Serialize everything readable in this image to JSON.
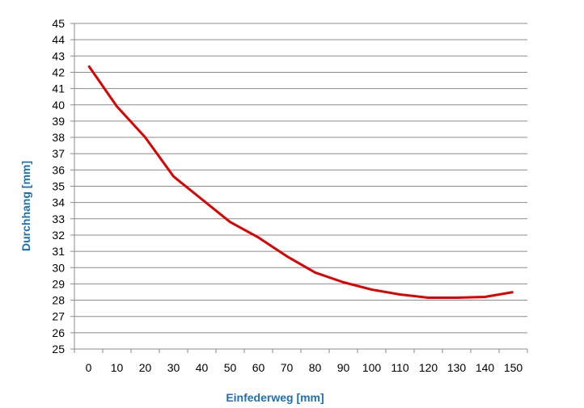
{
  "chart_data": {
    "type": "line",
    "title": "",
    "xlabel": "Einfederweg [mm]",
    "ylabel": "Durchhang [mm]",
    "categories": [
      "0",
      "10",
      "20",
      "30",
      "40",
      "50",
      "60",
      "70",
      "80",
      "90",
      "100",
      "110",
      "120",
      "130",
      "140",
      "150"
    ],
    "series": [
      {
        "values": [
          42.4,
          39.9,
          38.0,
          35.6,
          34.2,
          32.8,
          31.85,
          30.7,
          29.7,
          29.1,
          28.65,
          28.35,
          28.15,
          28.15,
          28.2,
          28.5
        ]
      }
    ],
    "ylim": [
      25,
      45
    ],
    "ytick_step": 1,
    "grid": true,
    "legend": "none",
    "colors": {
      "line": "#e00000",
      "axis_label": "#1f6fb5",
      "grid": "#8c8c8c",
      "tick_text": "#000000"
    }
  }
}
